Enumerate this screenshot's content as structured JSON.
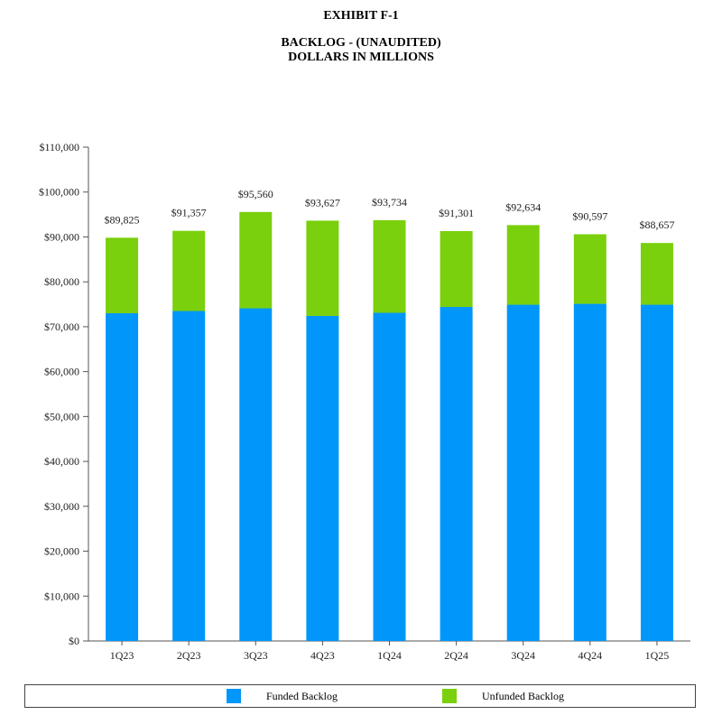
{
  "header": {
    "exhibit": "EXHIBIT F-1",
    "title_line1": "BACKLOG - (UNAUDITED)",
    "title_line2": "DOLLARS IN MILLIONS"
  },
  "chart_data": {
    "type": "bar",
    "stacked": true,
    "categories": [
      "1Q23",
      "2Q23",
      "3Q23",
      "4Q23",
      "1Q24",
      "2Q24",
      "3Q24",
      "4Q24",
      "1Q25"
    ],
    "series": [
      {
        "name": "Funded Backlog",
        "color": "#0096FA",
        "values": [
          73000,
          73500,
          74100,
          72400,
          73100,
          74400,
          74900,
          75100,
          74900
        ]
      },
      {
        "name": "Unfunded Backlog",
        "color": "#7AD00C",
        "values": [
          16825,
          17857,
          21460,
          21227,
          20634,
          16901,
          17734,
          15497,
          13757
        ]
      }
    ],
    "totals": [
      89825,
      91357,
      95560,
      93627,
      93734,
      91301,
      92634,
      90597,
      88657
    ],
    "total_labels": [
      "$89,825",
      "$91,357",
      "$95,560",
      "$93,627",
      "$93,734",
      "$91,301",
      "$92,634",
      "$90,597",
      "$88,657"
    ],
    "y_ticks": [
      0,
      10000,
      20000,
      30000,
      40000,
      50000,
      60000,
      70000,
      80000,
      90000,
      100000,
      110000
    ],
    "y_tick_labels": [
      "$0",
      "$10,000",
      "$20,000",
      "$30,000",
      "$40,000",
      "$50,000",
      "$60,000",
      "$70,000",
      "$80,000",
      "$90,000",
      "$100,000",
      "$110,000"
    ],
    "ylim": [
      0,
      110000
    ],
    "xlabel": "",
    "ylabel": "",
    "legend_position": "bottom"
  }
}
